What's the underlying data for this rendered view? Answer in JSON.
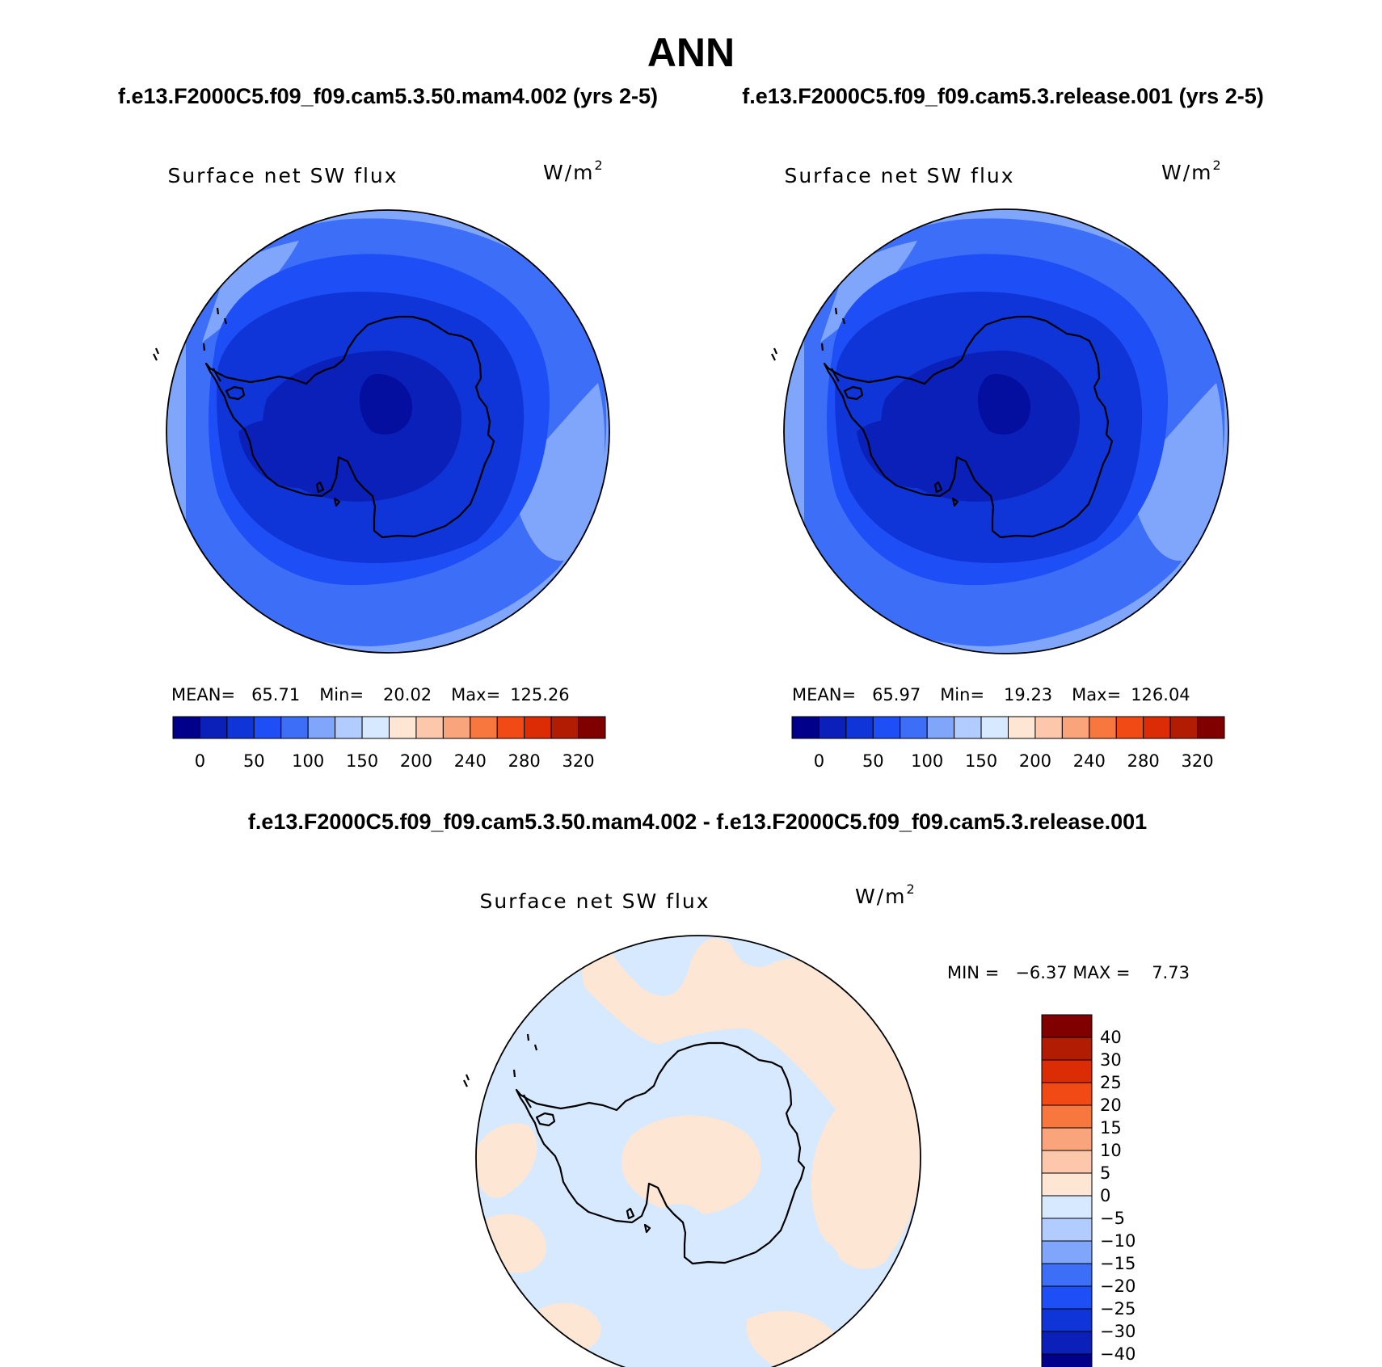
{
  "title": "ANN",
  "panels": [
    {
      "case_title": "f.e13.F2000C5.f09_f09.cam5.3.50.mam4.002 (yrs 2-5)",
      "field_label": "Surface net SW flux",
      "units_base": "W/m",
      "units_exp": "2",
      "stats": {
        "mean_label": "MEAN=",
        "mean": "65.71",
        "min_label": "Min=",
        "min": "20.02",
        "max_label": "Max=",
        "max": "125.26"
      },
      "colorbar_labels": [
        "0",
        "50",
        "100",
        "150",
        "200",
        "240",
        "280",
        "320"
      ]
    },
    {
      "case_title": "f.e13.F2000C5.f09_f09.cam5.3.release.001 (yrs 2-5)",
      "field_label": "Surface net SW flux",
      "units_base": "W/m",
      "units_exp": "2",
      "stats": {
        "mean_label": "MEAN=",
        "mean": "65.97",
        "min_label": "Min=",
        "min": "19.23",
        "max_label": "Max=",
        "max": "126.04"
      },
      "colorbar_labels": [
        "0",
        "50",
        "100",
        "150",
        "200",
        "240",
        "280",
        "320"
      ]
    }
  ],
  "diff_panel": {
    "case_title": "f.e13.F2000C5.f09_f09.cam5.3.50.mam4.002 - f.e13.F2000C5.f09_f09.cam5.3.release.001",
    "field_label": "Surface net SW flux",
    "units_base": "W/m",
    "units_exp": "2",
    "minmax_text": "MIN =   −6.37 MAX =    7.73",
    "colorbar_labels": [
      "40",
      "30",
      "25",
      "20",
      "15",
      "10",
      "5",
      "0",
      "−5",
      "−10",
      "−15",
      "−20",
      "−25",
      "−30",
      "−40"
    ]
  },
  "palette": {
    "abs": [
      "#00008b",
      "#0a20b8",
      "#0f35d8",
      "#1e4ef5",
      "#3d6ef7",
      "#7fa6fb",
      "#b2ccff",
      "#d7e9ff",
      "#fde6d4",
      "#fcc7aa",
      "#f9a47b",
      "#f7773f",
      "#f24a14",
      "#dc2c06",
      "#b11c03",
      "#800000"
    ],
    "diff": [
      "#00008b",
      "#0a20b8",
      "#0f35d8",
      "#1e4ef5",
      "#3d6ef7",
      "#7fa6fb",
      "#b2ccff",
      "#d7e9ff",
      "#fde6d4",
      "#fcc7aa",
      "#f9a47b",
      "#f7773f",
      "#f24a14",
      "#dc2c06",
      "#b11c03",
      "#800000"
    ]
  }
}
